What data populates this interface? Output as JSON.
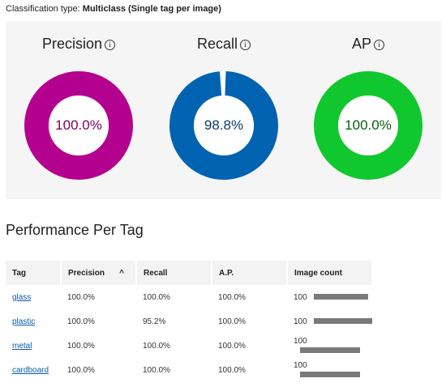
{
  "classification": {
    "label": "Classification type:",
    "value": "Multiclass (Single tag per image)"
  },
  "metrics": [
    {
      "title": "Precision",
      "value_text": "100.0%",
      "value": 1.0,
      "color": "#b4008f",
      "text_color": "#7a0062"
    },
    {
      "title": "Recall",
      "value_text": "98.8%",
      "value": 0.988,
      "color": "#0063b1",
      "text_color": "#0b3a66"
    },
    {
      "title": "AP",
      "value_text": "100.0%",
      "value": 1.0,
      "color": "#10c82e",
      "text_color": "#0a5d12"
    }
  ],
  "info_glyph": "i",
  "performance": {
    "title": "Performance Per Tag",
    "columns": [
      "Tag",
      "Precision",
      "Recall",
      "A.P.",
      "Image count"
    ],
    "sort_indicator": "^",
    "rows": [
      {
        "tag": "glass",
        "precision": "100.0%",
        "recall": "100.0%",
        "ap": "100.0%",
        "count": "100",
        "bar_fraction": 0.88
      },
      {
        "tag": "plastic",
        "precision": "100.0%",
        "recall": "95.2%",
        "ap": "100.0%",
        "count": "100",
        "bar_fraction": 0.95
      },
      {
        "tag": "metal",
        "precision": "100.0%",
        "recall": "100.0%",
        "ap": "100.0%",
        "count": "100",
        "bar_fraction": 0.98
      },
      {
        "tag": "cardboard",
        "precision": "100.0%",
        "recall": "100.0%",
        "ap": "100.0%",
        "count": "100",
        "bar_fraction": 0.97
      }
    ]
  }
}
